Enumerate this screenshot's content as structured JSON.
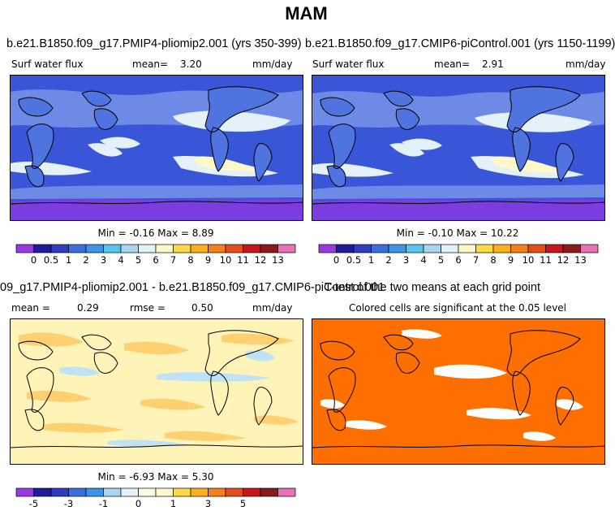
{
  "season": "MAM",
  "panels": {
    "top_left": {
      "title": "b.e21.B1850.f09_g17.PMIP4-pliomip2.001 (yrs 350-399)",
      "variable": "Surf water flux",
      "mean_label": "mean=",
      "mean_value": "3.20",
      "units": "mm/day",
      "minmax": "Min = -0.16 Max = 8.89"
    },
    "top_right": {
      "title": "b.e21.B1850.f09_g17.CMIP6-piControl.001 (yrs 1150-1199)",
      "variable": "Surf water flux",
      "mean_label": "mean=",
      "mean_value": "2.91",
      "units": "mm/day",
      "minmax": "Min = -0.10 Max = 10.22"
    },
    "bottom_left": {
      "title": "09_g17.PMIP4-pliomip2.001 - b.e21.B1850.f09_g17.CMIP6-piControl.001",
      "mean_label": "mean =",
      "mean_value": "0.29",
      "rmse_label": "rmse =",
      "rmse_value": "0.50",
      "units": "mm/day",
      "minmax": "Min = -6.93 Max = 5.30"
    },
    "bottom_right": {
      "title": "T-test of the two means at each grid point",
      "subtitle": "Colored cells are significant at the 0.05 level"
    }
  },
  "colorbars": {
    "abs_levels": [
      "0",
      "0.5",
      "1",
      "2",
      "3",
      "4",
      "5",
      "6",
      "7",
      "8",
      "9",
      "10",
      "11",
      "12",
      "13"
    ],
    "abs_colors": [
      "#9b38e6",
      "#1f1b9c",
      "#2d3ec2",
      "#3b6ee0",
      "#3d94e8",
      "#58c5ef",
      "#a8d6f2",
      "#e3f1fb",
      "#fff8c8",
      "#ffd94a",
      "#ffaf1c",
      "#f5801a",
      "#e44d1b",
      "#c8171b",
      "#8b1a1a",
      "#e871b8"
    ],
    "diff_levels": [
      "-5",
      "",
      "-3",
      "",
      "-1",
      "",
      "0",
      "",
      "1",
      "",
      "3",
      "",
      "5"
    ],
    "diff_colors": [
      "#9b38e6",
      "#1f1b9c",
      "#2d3ec2",
      "#3b6ee0",
      "#3d94e8",
      "#a8d6f2",
      "#e3f1fb",
      "#fffde6",
      "#fff8c8",
      "#ffd94a",
      "#ffaf1c",
      "#f5801a",
      "#e44d1b",
      "#c8171b",
      "#8b1a1a",
      "#e871b8"
    ]
  },
  "map_colors": {
    "ocean_wet": "#3a56d8",
    "ocean_mid": "#6d8be6",
    "dry_band": "#e4f1fb",
    "dry_core": "#fff8c8",
    "land": "#4f73df",
    "south": "#7b3de0",
    "diff_bg": "#fff4b8",
    "diff_pos": "#ffd070",
    "diff_neg": "#bfe2f6",
    "signif": "#ff6f00",
    "nonsig": "#ffffff"
  }
}
